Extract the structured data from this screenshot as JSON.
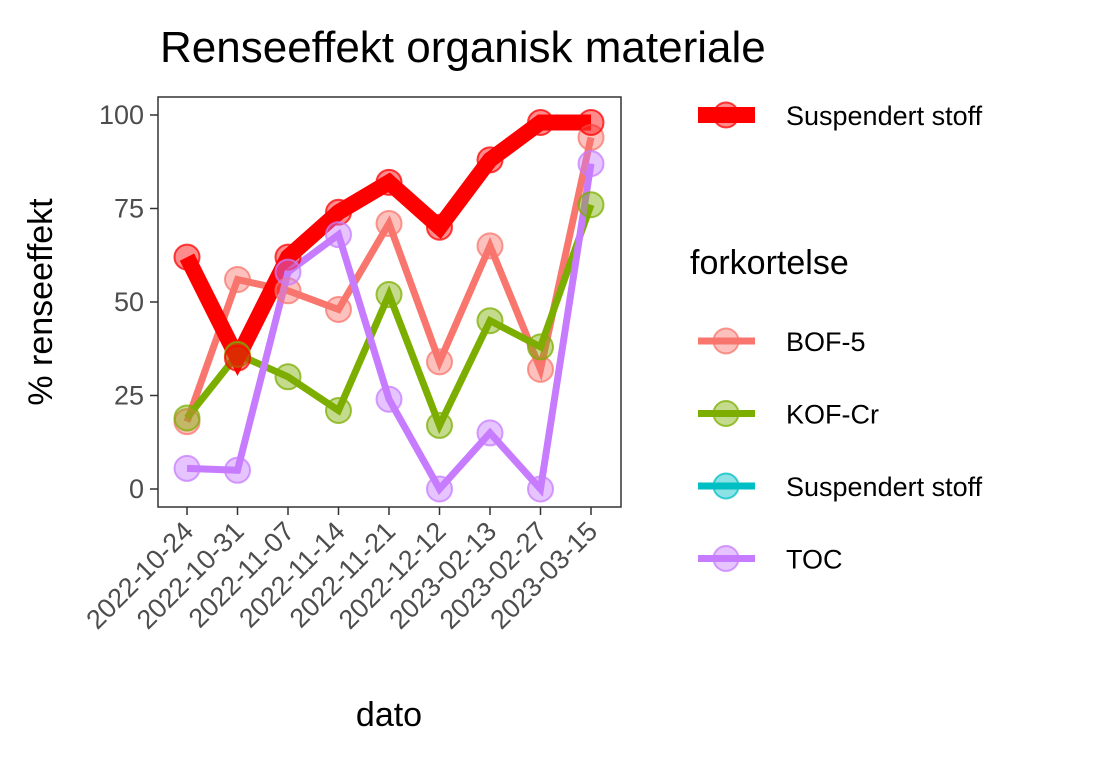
{
  "chart_data": {
    "type": "line",
    "title": "Renseeffekt organisk materiale",
    "xlabel": "dato",
    "ylabel": "% renseeffekt",
    "categories": [
      "2022-10-24",
      "2022-10-31",
      "2022-11-07",
      "2022-11-14",
      "2022-11-21",
      "2022-12-12",
      "2023-02-13",
      "2023-02-27",
      "2023-03-15"
    ],
    "ylim": [
      -5,
      105
    ],
    "yticks": [
      0,
      25,
      50,
      75,
      100
    ],
    "grid": false,
    "legend_position": "right",
    "series": [
      {
        "name": "BOF-5",
        "color": "#F8766D",
        "values": [
          18,
          56,
          53,
          48,
          71,
          34,
          65,
          32,
          94
        ]
      },
      {
        "name": "KOF-Cr",
        "color": "#7CAE00",
        "values": [
          19,
          36,
          30,
          21,
          52,
          17,
          45,
          38,
          76
        ]
      },
      {
        "name": "Suspendert stoff",
        "color": "#00BFC4",
        "values": [
          62,
          35,
          62,
          74,
          82,
          70,
          88,
          98,
          98
        ]
      },
      {
        "name": "TOC",
        "color": "#C77CFF",
        "values": [
          5.5,
          5,
          58,
          68,
          24,
          0,
          15,
          0,
          87
        ]
      }
    ],
    "highlight": {
      "name": "Suspendert stoff",
      "color": "#FF0000"
    },
    "legend": {
      "highlight_entry": "Suspendert stoff",
      "title": "forkortelse",
      "entries": [
        "BOF-5",
        "KOF-Cr",
        "Suspendert stoff",
        "TOC"
      ]
    }
  }
}
